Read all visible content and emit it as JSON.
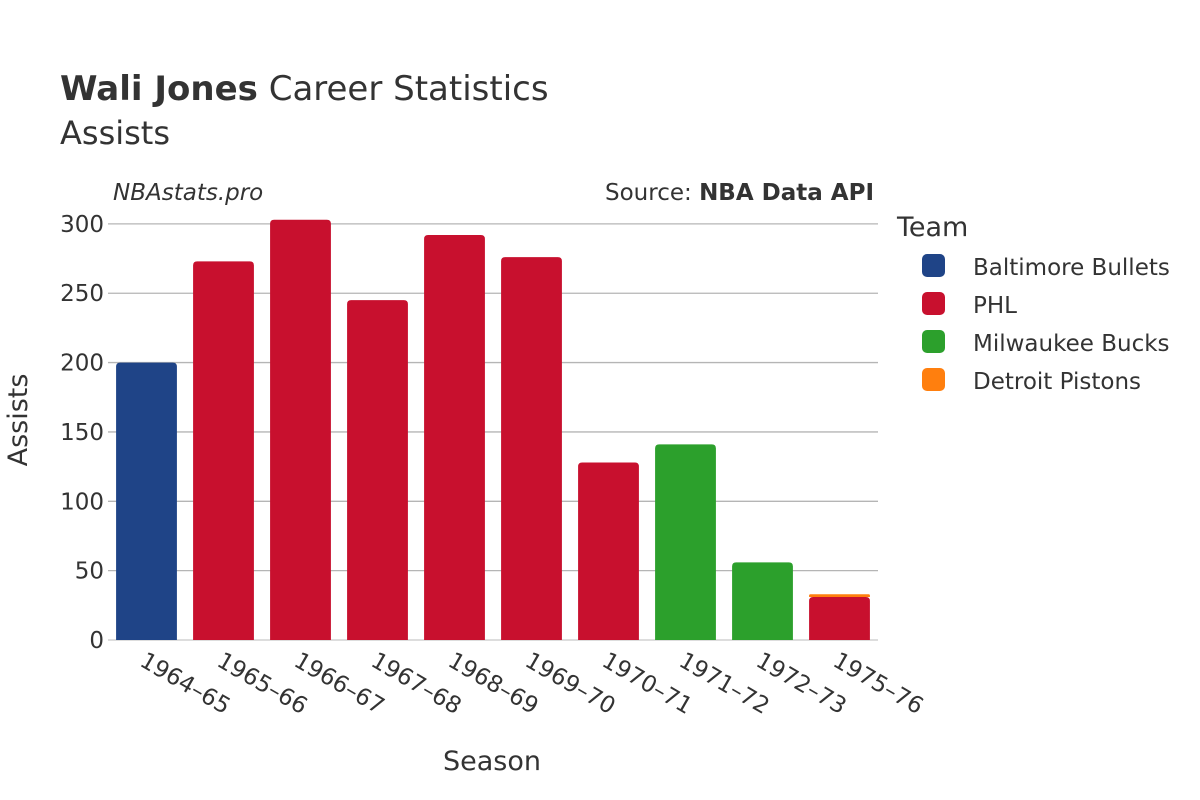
{
  "header": {
    "title_bold": "Wali Jones",
    "title_rest": " Career Statistics",
    "subtitle": "Assists"
  },
  "annotations": {
    "brand": "NBAstats.pro",
    "source_prefix": "Source: ",
    "source_bold": "NBA Data API"
  },
  "legend": {
    "title": "Team",
    "placement": "right",
    "items": [
      {
        "label": "Baltimore Bullets",
        "color": "#1f4487"
      },
      {
        "label": "PHL",
        "color": "#c8102e"
      },
      {
        "label": "Milwaukee Bucks",
        "color": "#2ca02c"
      },
      {
        "label": "Detroit Pistons",
        "color": "#ff7f0e"
      }
    ]
  },
  "chart_data": {
    "type": "bar",
    "barmode": "stack",
    "xlabel": "Season",
    "ylabel": "Assists",
    "ylim": [
      0,
      310
    ],
    "yticks": [
      0,
      50,
      100,
      150,
      200,
      250,
      300
    ],
    "grid": true,
    "categories": [
      "1964–65",
      "1965–66",
      "1966–67",
      "1967–68",
      "1968–69",
      "1969–70",
      "1970–71",
      "1971–72",
      "1972–73",
      "1975–76"
    ],
    "series": [
      {
        "name": "Baltimore Bullets",
        "color": "#1f4487",
        "values": [
          200,
          0,
          0,
          0,
          0,
          0,
          0,
          0,
          0,
          0
        ]
      },
      {
        "name": "PHL",
        "color": "#c8102e",
        "values": [
          0,
          273,
          303,
          245,
          292,
          276,
          128,
          0,
          0,
          31
        ]
      },
      {
        "name": "Milwaukee Bucks",
        "color": "#2ca02c",
        "values": [
          0,
          0,
          0,
          0,
          0,
          0,
          0,
          141,
          56,
          0
        ]
      },
      {
        "name": "Detroit Pistons",
        "color": "#ff7f0e",
        "values": [
          0,
          0,
          0,
          0,
          0,
          0,
          0,
          0,
          0,
          2
        ]
      }
    ]
  }
}
